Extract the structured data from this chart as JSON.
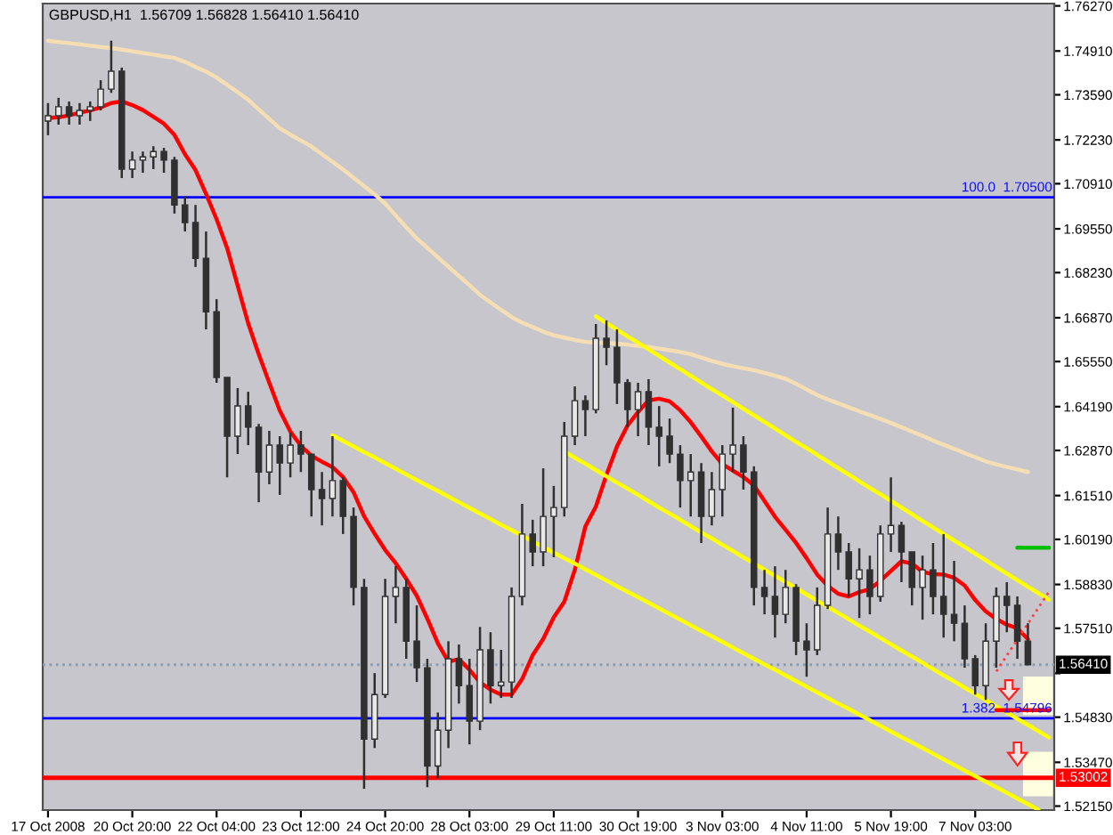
{
  "chart_data": {
    "type": "candlestick",
    "title": "GBPUSD,H1  1.56709 1.56828 1.56410 1.56410",
    "color": "#303030",
    "categories": [
      "17 Oct 2008",
      null,
      null,
      null,
      null,
      null,
      null,
      null,
      "20 Oct 20:00",
      null,
      null,
      null,
      null,
      null,
      null,
      null,
      "22 Oct 04:00",
      null,
      null,
      null,
      null,
      null,
      null,
      null,
      "23 Oct 12:00",
      null,
      null,
      null,
      null,
      null,
      null,
      null,
      "24 Oct 20:00",
      null,
      null,
      null,
      null,
      null,
      null,
      null,
      "28 Oct 03:00",
      null,
      null,
      null,
      null,
      null,
      null,
      null,
      "29 Oct 11:00",
      null,
      null,
      null,
      null,
      null,
      null,
      null,
      "30 Oct 19:00",
      null,
      null,
      null,
      null,
      null,
      null,
      null,
      "3 Nov 03:00",
      null,
      null,
      null,
      null,
      null,
      null,
      null,
      "4 Nov 11:00",
      null,
      null,
      null,
      null,
      null,
      null,
      null,
      "5 Nov 19:00",
      null,
      null,
      null,
      null,
      null,
      null,
      null,
      "7 Nov 03:00",
      null,
      null,
      null,
      null,
      null,
      null,
      null
    ],
    "ohlc": [
      [
        1.728,
        1.7334,
        1.7237,
        1.7296
      ],
      [
        1.7296,
        1.735,
        1.7269,
        1.7323
      ],
      [
        1.7323,
        1.7339,
        1.7269,
        1.7296
      ],
      [
        1.7296,
        1.7334,
        1.7269,
        1.7312
      ],
      [
        1.7312,
        1.7339,
        1.728,
        1.7323
      ],
      [
        1.7323,
        1.7403,
        1.7312,
        1.7376
      ],
      [
        1.7376,
        1.7522,
        1.7365,
        1.743
      ],
      [
        1.743,
        1.7441,
        1.7108,
        1.7135
      ],
      [
        1.7135,
        1.7188,
        1.7108,
        1.7162
      ],
      [
        1.7162,
        1.7188,
        1.7124,
        1.7172
      ],
      [
        1.7172,
        1.7204,
        1.7135,
        1.7188
      ],
      [
        1.7188,
        1.7199,
        1.7124,
        1.7162
      ],
      [
        1.7162,
        1.7172,
        1.7001,
        1.7027
      ],
      [
        1.7027,
        1.7054,
        1.6947,
        1.6974
      ],
      [
        1.6974,
        1.7027,
        1.684,
        1.6866
      ],
      [
        1.6866,
        1.6947,
        1.6652,
        1.6705
      ],
      [
        1.6705,
        1.6743,
        1.6491,
        1.6507
      ],
      [
        1.6507,
        1.6507,
        1.6206,
        1.633
      ],
      [
        1.633,
        1.6475,
        1.6276,
        1.6421
      ],
      [
        1.6421,
        1.6464,
        1.6303,
        1.6357
      ],
      [
        1.6357,
        1.6367,
        1.6131,
        1.6222
      ],
      [
        1.6222,
        1.6346,
        1.6185,
        1.6303
      ],
      [
        1.6303,
        1.633,
        1.6153,
        1.6249
      ],
      [
        1.6249,
        1.6341,
        1.6206,
        1.6303
      ],
      [
        1.6303,
        1.6346,
        1.6222,
        1.6276
      ],
      [
        1.6276,
        1.6276,
        1.6088,
        1.6169
      ],
      [
        1.6169,
        1.6222,
        1.6061,
        1.6142
      ],
      [
        1.6142,
        1.633,
        1.6088,
        1.6196
      ],
      [
        1.6196,
        1.6206,
        1.6035,
        1.6088
      ],
      [
        1.6088,
        1.6115,
        1.582,
        1.5874
      ],
      [
        1.5874,
        1.59,
        1.5267,
        1.5417
      ],
      [
        1.5417,
        1.5616,
        1.539,
        1.5551
      ],
      [
        1.5551,
        1.59,
        1.5541,
        1.5847
      ],
      [
        1.5847,
        1.5938,
        1.5766,
        1.5874
      ],
      [
        1.5874,
        1.59,
        1.5659,
        1.5712
      ],
      [
        1.5712,
        1.582,
        1.5589,
        1.5632
      ],
      [
        1.5632,
        1.5659,
        1.5272,
        1.5336
      ],
      [
        1.5336,
        1.5497,
        1.5299,
        1.5444
      ],
      [
        1.5444,
        1.5712,
        1.539,
        1.5659
      ],
      [
        1.5659,
        1.5702,
        1.5524,
        1.5578
      ],
      [
        1.5578,
        1.5659,
        1.5401,
        1.5471
      ],
      [
        1.5471,
        1.5755,
        1.5444,
        1.5686
      ],
      [
        1.5686,
        1.5739,
        1.5524,
        1.5578
      ],
      [
        1.5578,
        1.5686,
        1.5541,
        1.5589
      ],
      [
        1.5589,
        1.5874,
        1.5541,
        1.5847
      ],
      [
        1.5847,
        1.6126,
        1.582,
        1.6035
      ],
      [
        1.6035,
        1.6078,
        1.5938,
        1.5981
      ],
      [
        1.5981,
        1.6233,
        1.5938,
        1.6088
      ],
      [
        1.6088,
        1.618,
        1.5965,
        1.6115
      ],
      [
        1.6115,
        1.6373,
        1.6088,
        1.633
      ],
      [
        1.633,
        1.648,
        1.6303,
        1.6437
      ],
      [
        1.6437,
        1.6453,
        1.633,
        1.641
      ],
      [
        1.641,
        1.6668,
        1.6399,
        1.6625
      ],
      [
        1.6625,
        1.6679,
        1.6544,
        1.6598
      ],
      [
        1.6598,
        1.6652,
        1.6427,
        1.6491
      ],
      [
        1.6491,
        1.6502,
        1.6357,
        1.641
      ],
      [
        1.641,
        1.6491,
        1.633,
        1.6464
      ],
      [
        1.6464,
        1.6502,
        1.6303,
        1.6357
      ],
      [
        1.6357,
        1.6421,
        1.6239,
        1.633
      ],
      [
        1.633,
        1.6383,
        1.6249,
        1.6276
      ],
      [
        1.6276,
        1.6303,
        1.6115,
        1.6196
      ],
      [
        1.6196,
        1.6276,
        1.6088,
        1.6222
      ],
      [
        1.6222,
        1.6249,
        1.6008,
        1.6088
      ],
      [
        1.6088,
        1.6222,
        1.6061,
        1.6169
      ],
      [
        1.6169,
        1.6303,
        1.6088,
        1.6276
      ],
      [
        1.6276,
        1.6416,
        1.6222,
        1.6303
      ],
      [
        1.6303,
        1.633,
        1.6169,
        1.6222
      ],
      [
        1.6222,
        1.6239,
        1.582,
        1.5874
      ],
      [
        1.5874,
        1.5927,
        1.5793,
        1.5847
      ],
      [
        1.5847,
        1.5938,
        1.5723,
        1.5793
      ],
      [
        1.5793,
        1.5927,
        1.5766,
        1.5874
      ],
      [
        1.5874,
        1.5884,
        1.567,
        1.5712
      ],
      [
        1.5712,
        1.5766,
        1.5605,
        1.5686
      ],
      [
        1.5686,
        1.5874,
        1.567,
        1.582
      ],
      [
        1.582,
        1.6115,
        1.5809,
        1.6035
      ],
      [
        1.6035,
        1.6088,
        1.5927,
        1.5981
      ],
      [
        1.5981,
        1.6008,
        1.5847,
        1.59
      ],
      [
        1.59,
        1.5992,
        1.5782,
        1.5927
      ],
      [
        1.5927,
        1.597,
        1.5793,
        1.5847
      ],
      [
        1.5847,
        1.6061,
        1.5831,
        1.6035
      ],
      [
        1.6035,
        1.6206,
        1.5981,
        1.6061
      ],
      [
        1.6061,
        1.6072,
        1.589,
        1.5981
      ],
      [
        1.5981,
        1.5981,
        1.582,
        1.5874
      ],
      [
        1.5874,
        1.597,
        1.5777,
        1.5927
      ],
      [
        1.5927,
        1.6008,
        1.5793,
        1.5847
      ],
      [
        1.5847,
        1.6035,
        1.5723,
        1.5793
      ],
      [
        1.5793,
        1.5954,
        1.5712,
        1.5766
      ],
      [
        1.5766,
        1.582,
        1.5632,
        1.5659
      ],
      [
        1.5659,
        1.567,
        1.5551,
        1.5578
      ],
      [
        1.5578,
        1.5766,
        1.5535,
        1.5712
      ],
      [
        1.5712,
        1.5874,
        1.5632,
        1.5847
      ],
      [
        1.5847,
        1.589,
        1.5739,
        1.582
      ],
      [
        1.582,
        1.5847,
        1.5659,
        1.5712
      ],
      [
        1.5712,
        1.5766,
        1.5641,
        1.5641
      ],
      null,
      null
    ],
    "colors": [
      "#e8e8e8",
      "#e8e8e8",
      "#303030",
      "#e8e8e8",
      "#e8e8e8",
      "#e8e8e8",
      "#e8e8e8",
      "#303030",
      "#e8e8e8",
      "#e8e8e8",
      "#e8e8e8",
      "#303030",
      "#303030",
      "#303030",
      "#303030",
      "#303030",
      "#303030",
      "#303030",
      "#e8e8e8",
      "#303030",
      "#303030",
      "#e8e8e8",
      "#303030",
      "#e8e8e8",
      "#303030",
      "#303030",
      "#303030",
      "#e8e8e8",
      "#303030",
      "#303030",
      "#303030",
      "#e8e8e8",
      "#e8e8e8",
      "#e8e8e8",
      "#303030",
      "#303030",
      "#303030",
      "#e8e8e8",
      "#e8e8e8",
      "#303030",
      "#303030",
      "#e8e8e8",
      "#303030",
      "#e8e8e8",
      "#e8e8e8",
      "#e8e8e8",
      "#303030",
      "#e8e8e8",
      "#e8e8e8",
      "#e8e8e8",
      "#e8e8e8",
      "#303030",
      "#e8e8e8",
      "#303030",
      "#303030",
      "#303030",
      "#e8e8e8",
      "#303030",
      "#303030",
      "#303030",
      "#303030",
      "#e8e8e8",
      "#303030",
      "#e8e8e8",
      "#e8e8e8",
      "#e8e8e8",
      "#303030",
      "#303030",
      "#303030",
      "#303030",
      "#e8e8e8",
      "#303030",
      "#303030",
      "#e8e8e8",
      "#e8e8e8",
      "#303030",
      "#303030",
      "#e8e8e8",
      "#303030",
      "#e8e8e8",
      "#e8e8e8",
      "#303030",
      "#303030",
      "#e8e8e8",
      "#303030",
      "#303030",
      "#303030",
      "#303030",
      "#303030",
      "#e8e8e8",
      "#e8e8e8",
      "#303030",
      "#303030",
      "#303030",
      null,
      null
    ],
    "series": [
      {
        "type": "line",
        "color": "#ff0000",
        "values": [
          1.7289,
          1.7291,
          1.7297,
          1.7305,
          1.7312,
          1.7321,
          1.7334,
          1.7339,
          1.7328,
          1.7313,
          1.7293,
          1.7272,
          1.7238,
          1.718,
          1.7132,
          1.706,
          1.6984,
          1.6897,
          1.6784,
          1.667,
          1.6577,
          1.6491,
          1.6407,
          1.6344,
          1.6301,
          1.6271,
          1.6253,
          1.6237,
          1.6207,
          1.6161,
          1.6089,
          1.6036,
          1.5987,
          1.5947,
          1.59,
          1.5849,
          1.578,
          1.5706,
          1.565,
          1.5658,
          1.5626,
          1.5588,
          1.5566,
          1.5551,
          1.5551,
          1.5598,
          1.567,
          1.5719,
          1.5784,
          1.5831,
          1.5927,
          1.6058,
          1.6118,
          1.6213,
          1.6299,
          1.6362,
          1.6403,
          1.6438,
          1.6443,
          1.6435,
          1.6408,
          1.6372,
          1.6329,
          1.6284,
          1.6246,
          1.6226,
          1.6207,
          1.6182,
          1.6135,
          1.6087,
          1.6048,
          1.6008,
          1.5962,
          1.5913,
          1.5879,
          1.5855,
          1.5847,
          1.586,
          1.5869,
          1.5894,
          1.5924,
          1.5953,
          1.5946,
          1.5921,
          1.5914,
          1.5913,
          1.5903,
          1.588,
          1.5836,
          1.5802,
          1.5779,
          1.5762,
          1.5751,
          1.5718,
          null,
          null
        ]
      },
      {
        "type": "line",
        "color": "#f5deb3",
        "values": [
          1.7522,
          1.7518,
          1.7515,
          1.7511,
          1.7507,
          1.7503,
          1.75,
          1.7495,
          1.749,
          1.7485,
          1.748,
          1.7475,
          1.747,
          1.7458,
          1.7443,
          1.7429,
          1.7411,
          1.7389,
          1.7367,
          1.7344,
          1.7315,
          1.7286,
          1.7258,
          1.7239,
          1.7221,
          1.7203,
          1.718,
          1.7157,
          1.7134,
          1.7109,
          1.7084,
          1.7059,
          1.7031,
          1.6995,
          1.696,
          1.6926,
          1.6898,
          1.6869,
          1.6841,
          1.6813,
          1.6785,
          1.6756,
          1.6733,
          1.6711,
          1.6689,
          1.6672,
          1.6659,
          1.6645,
          1.6634,
          1.6627,
          1.662,
          1.6614,
          1.6612,
          1.6611,
          1.6609,
          1.6606,
          1.6602,
          1.6599,
          1.6594,
          1.6589,
          1.6584,
          1.6577,
          1.6567,
          1.6557,
          1.6548,
          1.6541,
          1.6535,
          1.6529,
          1.6521,
          1.6512,
          1.6503,
          1.6488,
          1.6471,
          1.6454,
          1.6441,
          1.6429,
          1.6417,
          1.6405,
          1.6394,
          1.6382,
          1.637,
          1.6357,
          1.6344,
          1.6331,
          1.6317,
          1.6304,
          1.6292,
          1.6279,
          1.6267,
          1.6254,
          1.6245,
          1.6237,
          1.623,
          1.6222,
          null,
          null
        ]
      },
      {
        "type": "line",
        "color": "#ffff00",
        "values": [
          null,
          null,
          null,
          null,
          null,
          null,
          null,
          null,
          null,
          null,
          null,
          null,
          null,
          null,
          null,
          null,
          null,
          null,
          null,
          null,
          null,
          null,
          null,
          null,
          null,
          null,
          null,
          1.6333,
          1.6316,
          1.6299,
          1.6282,
          1.6266,
          1.6249,
          1.6232,
          1.6215,
          1.6198,
          1.6181,
          1.6165,
          1.6148,
          1.6131,
          1.6114,
          1.6097,
          1.608,
          1.6063,
          1.6047,
          1.603,
          1.6013,
          1.5996,
          1.5979,
          1.5962,
          1.5946,
          1.5929,
          1.5912,
          1.5895,
          1.5878,
          1.5861,
          1.5845,
          1.5828,
          1.5811,
          1.5794,
          1.5777,
          1.576,
          1.5743,
          1.5727,
          1.571,
          1.5693,
          1.5676,
          1.5659,
          1.5642,
          1.5626,
          1.5609,
          1.5592,
          1.5575,
          1.5558,
          1.5541,
          1.5524,
          1.5508,
          1.5491,
          1.5474,
          1.5457,
          1.544,
          1.5423,
          1.5407,
          1.539,
          1.5373,
          1.5356,
          1.5339,
          1.5322,
          1.5305,
          1.5289,
          1.5272,
          1.5255,
          1.5238,
          1.5221,
          1.5204,
          null
        ]
      },
      {
        "type": "line",
        "color": "#ffff00",
        "values": [
          null,
          null,
          null,
          null,
          null,
          null,
          null,
          null,
          null,
          null,
          null,
          null,
          null,
          null,
          null,
          null,
          null,
          null,
          null,
          null,
          null,
          null,
          null,
          null,
          null,
          null,
          null,
          null,
          null,
          null,
          null,
          null,
          null,
          null,
          null,
          null,
          null,
          null,
          null,
          null,
          null,
          null,
          null,
          null,
          null,
          null,
          null,
          null,
          null,
          1.6284,
          1.6265,
          1.6247,
          1.6228,
          1.6209,
          1.619,
          1.6172,
          1.6153,
          1.6134,
          1.6115,
          1.6097,
          1.6078,
          1.6059,
          1.604,
          1.6022,
          1.6003,
          1.5984,
          1.5965,
          1.5947,
          1.5928,
          1.5909,
          1.5891,
          1.5872,
          1.5853,
          1.5834,
          1.5816,
          1.5797,
          1.5778,
          1.5759,
          1.5741,
          1.5722,
          1.5703,
          1.5684,
          1.5666,
          1.5647,
          1.5628,
          1.5609,
          1.5591,
          1.5572,
          1.5553,
          1.5535,
          1.5516,
          1.5497,
          1.5478,
          1.546,
          1.5441,
          1.5422
        ]
      },
      {
        "type": "line",
        "color": "#ffff00",
        "values": [
          null,
          null,
          null,
          null,
          null,
          null,
          null,
          null,
          null,
          null,
          null,
          null,
          null,
          null,
          null,
          null,
          null,
          null,
          null,
          null,
          null,
          null,
          null,
          null,
          null,
          null,
          null,
          null,
          null,
          null,
          null,
          null,
          null,
          null,
          null,
          null,
          null,
          null,
          null,
          null,
          null,
          null,
          null,
          null,
          null,
          null,
          null,
          null,
          null,
          null,
          null,
          null,
          1.6691,
          1.6671,
          1.6651,
          1.6631,
          1.6612,
          1.6592,
          1.6572,
          1.6552,
          1.6532,
          1.6512,
          1.6492,
          1.6472,
          1.6453,
          1.6433,
          1.6413,
          1.6393,
          1.6373,
          1.6353,
          1.6333,
          1.6313,
          1.6294,
          1.6274,
          1.6254,
          1.6234,
          1.6214,
          1.6194,
          1.6174,
          1.6155,
          1.6135,
          1.6115,
          1.6095,
          1.6075,
          1.6055,
          1.6035,
          1.6016,
          1.5996,
          1.5976,
          1.5956,
          1.5936,
          1.5916,
          1.5896,
          1.5876,
          1.5857,
          1.5837
        ]
      },
      {
        "type": "line",
        "color": "#ff4040",
        "line_style": "dotted",
        "values": [
          null,
          null,
          null,
          null,
          null,
          null,
          null,
          null,
          null,
          null,
          null,
          null,
          null,
          null,
          null,
          null,
          null,
          null,
          null,
          null,
          null,
          null,
          null,
          null,
          null,
          null,
          null,
          null,
          null,
          null,
          null,
          null,
          null,
          null,
          null,
          null,
          null,
          null,
          null,
          null,
          null,
          null,
          null,
          null,
          null,
          null,
          null,
          null,
          null,
          null,
          null,
          null,
          null,
          null,
          null,
          null,
          null,
          null,
          null,
          null,
          null,
          null,
          null,
          null,
          null,
          null,
          null,
          null,
          null,
          null,
          null,
          null,
          null,
          null,
          null,
          null,
          null,
          null,
          null,
          null,
          null,
          null,
          null,
          null,
          null,
          null,
          null,
          null,
          null,
          null,
          1.5621,
          1.5669,
          1.5717,
          1.5765,
          1.5813,
          1.5861
        ]
      },
      {
        "type": "line",
        "color": "#ff0000",
        "values": [
          null,
          null,
          null,
          null,
          null,
          null,
          null,
          null,
          null,
          null,
          null,
          null,
          null,
          null,
          null,
          null,
          null,
          null,
          null,
          null,
          null,
          null,
          null,
          null,
          null,
          null,
          null,
          null,
          null,
          null,
          null,
          null,
          null,
          null,
          null,
          null,
          null,
          null,
          null,
          null,
          null,
          null,
          null,
          null,
          null,
          null,
          null,
          null,
          null,
          null,
          null,
          null,
          null,
          null,
          null,
          null,
          null,
          null,
          null,
          null,
          null,
          null,
          null,
          null,
          null,
          null,
          null,
          null,
          null,
          null,
          null,
          null,
          null,
          null,
          null,
          null,
          null,
          null,
          null,
          null,
          null,
          null,
          null,
          null,
          null,
          null,
          null,
          null,
          null,
          null,
          1.5504,
          1.5504,
          1.5504,
          1.5504,
          1.5504,
          1.5504
        ]
      },
      {
        "type": "line",
        "color": "#00c000",
        "values": [
          null,
          null,
          null,
          null,
          null,
          null,
          null,
          null,
          null,
          null,
          null,
          null,
          null,
          null,
          null,
          null,
          null,
          null,
          null,
          null,
          null,
          null,
          null,
          null,
          null,
          null,
          null,
          null,
          null,
          null,
          null,
          null,
          null,
          null,
          null,
          null,
          null,
          null,
          null,
          null,
          null,
          null,
          null,
          null,
          null,
          null,
          null,
          null,
          null,
          null,
          null,
          null,
          null,
          null,
          null,
          null,
          null,
          null,
          null,
          null,
          null,
          null,
          null,
          null,
          null,
          null,
          null,
          null,
          null,
          null,
          null,
          null,
          null,
          null,
          null,
          null,
          null,
          null,
          null,
          null,
          null,
          null,
          null,
          null,
          null,
          null,
          null,
          null,
          null,
          null,
          null,
          null,
          1.5994,
          1.5994,
          1.5994,
          1.5994
        ]
      }
    ],
    "ref_lines": [
      {
        "axis": "y",
        "value": 1.705,
        "color": "#0000ff"
      },
      {
        "axis": "y",
        "value": 1.54796,
        "color": "#0000ff"
      },
      {
        "axis": "y",
        "value": 1.5641,
        "label": "1.56410",
        "color": "#8c9cb0",
        "line_style": "dotted"
      },
      {
        "axis": "y",
        "value": 1.53002,
        "label": "1.53002",
        "color": "#ff0000"
      }
    ],
    "annotations": [
      {
        "text": "100.0  1.70500",
        "y": 1.705
      },
      {
        "text": "1.382  1.54796",
        "y": 1.54796
      }
    ],
    "ylim": [
      1.5203,
      1.7634
    ],
    "yticks": [
      {
        "value": 1.5215,
        "label": "1.52150"
      },
      {
        "value": 1.5347,
        "label": "1.53470"
      },
      {
        "value": 1.5483,
        "label": "1.54830"
      },
      {
        "value": 1.5615,
        "label": null
      },
      {
        "value": 1.5751,
        "label": "1.57510"
      },
      {
        "value": 1.5883,
        "label": "1.58830"
      },
      {
        "value": 1.6019,
        "label": "1.60190"
      },
      {
        "value": 1.6151,
        "label": "1.61510"
      },
      {
        "value": 1.6287,
        "label": "1.62870"
      },
      {
        "value": 1.6419,
        "label": "1.64190"
      },
      {
        "value": 1.6555,
        "label": "1.65550"
      },
      {
        "value": 1.6687,
        "label": "1.66870"
      },
      {
        "value": 1.6823,
        "label": "1.68230"
      },
      {
        "value": 1.6955,
        "label": "1.69550"
      },
      {
        "value": 1.7091,
        "label": "1.70910"
      },
      {
        "value": 1.7223,
        "label": "1.72230"
      },
      {
        "value": 1.7359,
        "label": "1.73590"
      },
      {
        "value": 1.7491,
        "label": "1.74910"
      },
      {
        "value": 1.7627,
        "label": "1.76270"
      }
    ]
  }
}
